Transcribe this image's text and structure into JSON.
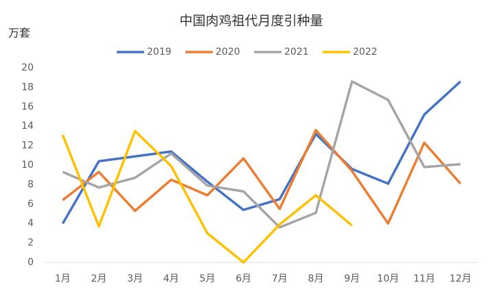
{
  "chart_data": {
    "type": "line",
    "title": "中国肉鸡祖代月度引种量",
    "y_label": "万套",
    "categories": [
      "1月",
      "2月",
      "3月",
      "4月",
      "5月",
      "6月",
      "7月",
      "8月",
      "9月",
      "10月",
      "11月",
      "12月"
    ],
    "series": [
      {
        "name": "2019",
        "color": "#4472c4",
        "values": [
          4.0,
          10.4,
          10.9,
          11.4,
          8.3,
          5.4,
          6.5,
          13.2,
          9.6,
          8.1,
          15.2,
          18.6
        ]
      },
      {
        "name": "2020",
        "color": "#ed7d31",
        "values": [
          6.4,
          9.3,
          5.3,
          8.5,
          6.9,
          10.7,
          5.5,
          13.6,
          9.4,
          4.0,
          12.3,
          8.1
        ]
      },
      {
        "name": "2021",
        "color": "#a5a5a5",
        "values": [
          9.3,
          7.7,
          8.7,
          11.2,
          7.9,
          7.3,
          3.6,
          5.1,
          18.6,
          16.7,
          9.8,
          10.1
        ]
      },
      {
        "name": "2022",
        "color": "#ffc000",
        "values": [
          13.1,
          3.7,
          13.5,
          9.9,
          3.0,
          0.0,
          3.9,
          6.9,
          3.8,
          null,
          null,
          null
        ]
      }
    ],
    "ylim": [
      0,
      20
    ],
    "yticks": [
      0,
      2,
      4,
      6,
      8,
      10,
      12,
      14,
      16,
      18,
      20
    ],
    "grid": false,
    "legend": "top"
  }
}
